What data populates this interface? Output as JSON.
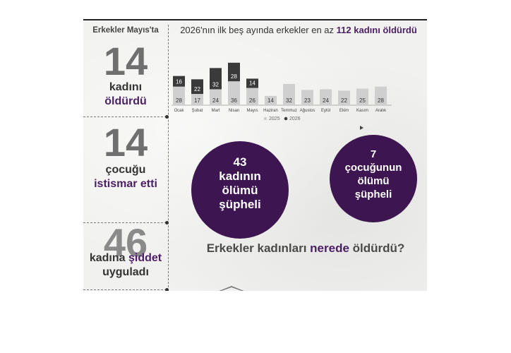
{
  "left": {
    "header": "Erkekler Mayıs'ta",
    "stat1": {
      "value": "14",
      "line1": "kadını",
      "line2": "öldürdü"
    },
    "stat2": {
      "value": "14",
      "line1": "çocuğu",
      "line2": "istismar etti"
    },
    "stat3": {
      "value": "46",
      "line1": "kadına şiddet",
      "line1_highlight": "şiddet",
      "line1_plain": "kadına ",
      "line2": "uyguladı"
    }
  },
  "chart_title": {
    "prefix": "2026'nın ilk beş ayında erkekler en az ",
    "highlight": "112 kadını öldürdü"
  },
  "chart_data": {
    "type": "bar",
    "title": "2026'nın ilk beş ayında erkekler en az 112 kadını öldürdü",
    "categories": [
      "Ocak",
      "Şubat",
      "Mart",
      "Nisan",
      "Mayıs",
      "Haziran",
      "Temmuz",
      "Ağustos",
      "Eylül",
      "Ekim",
      "Kasım",
      "Aralık"
    ],
    "series": [
      {
        "name": "2025",
        "values": [
          28,
          17,
          24,
          36,
          26,
          14,
          32,
          23,
          24,
          22,
          25,
          28
        ],
        "color": "#cfcfcf"
      },
      {
        "name": "2026",
        "values": [
          16,
          22,
          32,
          28,
          14,
          null,
          null,
          null,
          null,
          null,
          null,
          null
        ],
        "color": "#3a3a3a"
      }
    ],
    "legend": "bottom",
    "grid": false
  },
  "circles": {
    "women": {
      "line1": "43",
      "line2": "kadının",
      "line3": "ölümü",
      "line4": "şüpheli"
    },
    "children": {
      "line1": "7",
      "line2": "çocuğunun",
      "line3": "ölümü",
      "line4": "şüpheli"
    }
  },
  "question": {
    "before": "Erkekler kadınları ",
    "highlight": "nerede",
    "after": " öldürdü?"
  },
  "colors": {
    "purple": "#4b1f63",
    "circle": "#3d1550",
    "bar2025": "#cfcfcf",
    "bar2026": "#3a3a3a"
  }
}
